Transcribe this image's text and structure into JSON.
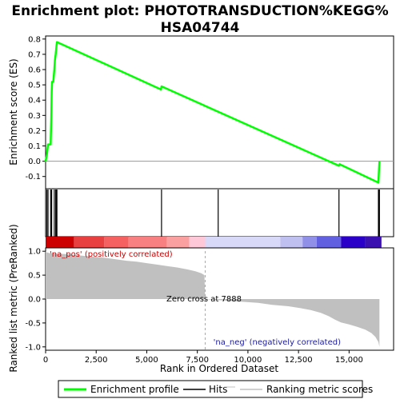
{
  "chart_data": [
    {
      "type": "line",
      "title": "Enrichment plot: PHOTOTRANSDUCTION%KEGG%\nHSA04744",
      "title_lines": [
        "Enrichment plot: PHOTOTRANSDUCTION%KEGG%",
        "HSA04744"
      ],
      "ylabel": "Enrichment score (ES)",
      "ylim": [
        -0.18,
        0.82
      ],
      "xlim": [
        0,
        17200
      ],
      "y_ticks": [
        "-0.1",
        "0.0",
        "0.1",
        "0.2",
        "0.3",
        "0.4",
        "0.5",
        "0.6",
        "0.7",
        "0.8"
      ],
      "y_tick_values": [
        -0.1,
        0.0,
        0.1,
        0.2,
        0.3,
        0.4,
        0.5,
        0.6,
        0.7,
        0.8
      ],
      "grid": false,
      "series": [
        {
          "name": "Enrichment profile",
          "color": "#00ff00",
          "x": [
            0,
            60,
            120,
            250,
            280,
            300,
            320,
            380,
            430,
            460,
            500,
            540,
            560,
            5700,
            5730,
            14500,
            14530,
            16450,
            16480,
            16500
          ],
          "y": [
            0.0,
            0.04,
            0.11,
            0.11,
            0.28,
            0.45,
            0.52,
            0.52,
            0.6,
            0.66,
            0.7,
            0.76,
            0.78,
            0.47,
            0.49,
            -0.03,
            -0.02,
            -0.14,
            -0.05,
            0.0
          ]
        }
      ]
    },
    {
      "type": "hits",
      "hit_positions": [
        60,
        120,
        250,
        300,
        430,
        500,
        540,
        560,
        5730,
        8530,
        14500,
        16450,
        16480,
        16500
      ],
      "hit_color": "#000000",
      "heat_band": [
        {
          "from": 0,
          "to": 1400,
          "color": "#cc0000"
        },
        {
          "from": 1400,
          "to": 2900,
          "color": "#e84040"
        },
        {
          "from": 2900,
          "to": 4100,
          "color": "#f56060"
        },
        {
          "from": 4100,
          "to": 6000,
          "color": "#f98080"
        },
        {
          "from": 6000,
          "to": 7100,
          "color": "#fba0a0"
        },
        {
          "from": 7100,
          "to": 7888,
          "color": "#ffc8d8"
        },
        {
          "from": 7888,
          "to": 11600,
          "color": "#d8d8f8"
        },
        {
          "from": 11600,
          "to": 12700,
          "color": "#c0c0f0"
        },
        {
          "from": 12700,
          "to": 13400,
          "color": "#9090e8"
        },
        {
          "from": 13400,
          "to": 14600,
          "color": "#6060e0"
        },
        {
          "from": 14600,
          "to": 15800,
          "color": "#2a00c8"
        },
        {
          "from": 15800,
          "to": 16600,
          "color": "#3a10b0"
        }
      ]
    },
    {
      "type": "area",
      "xlabel": "Rank in Ordered Dataset",
      "ylabel": "Ranked list metric (PreRanked)",
      "ylim": [
        -1.07,
        1.07
      ],
      "xlim": [
        0,
        17200
      ],
      "y_ticks": [
        "-1.0",
        "-0.5",
        "0.0",
        "0.5",
        "1.0"
      ],
      "y_tick_values": [
        -1.0,
        -0.5,
        0.0,
        0.5,
        1.0
      ],
      "x_ticks": [
        "0",
        "2,500",
        "5,000",
        "7,500",
        "10,000",
        "12,500",
        "15,000"
      ],
      "x_tick_values": [
        0,
        2500,
        5000,
        7500,
        10000,
        12500,
        15000
      ],
      "series": [
        {
          "name": "Ranking metric scores",
          "color": "#c0c0c0",
          "x": [
            0,
            30,
            200,
            600,
            1000,
            1500,
            2000,
            2500,
            3000,
            3500,
            4000,
            4500,
            5000,
            5500,
            6000,
            6500,
            7000,
            7400,
            7700,
            7850,
            7888,
            8500,
            9500,
            10500,
            11200,
            12000,
            12600,
            13100,
            13600,
            14000,
            14300,
            14600,
            15000,
            15400,
            15800,
            16100,
            16300,
            16450,
            16500
          ],
          "y": [
            1.0,
            0.98,
            0.96,
            0.95,
            0.94,
            0.92,
            0.9,
            0.88,
            0.86,
            0.83,
            0.8,
            0.78,
            0.75,
            0.72,
            0.69,
            0.66,
            0.62,
            0.58,
            0.54,
            0.5,
            0.0,
            -0.02,
            -0.05,
            -0.08,
            -0.12,
            -0.15,
            -0.19,
            -0.23,
            -0.29,
            -0.36,
            -0.43,
            -0.49,
            -0.53,
            -0.58,
            -0.64,
            -0.71,
            -0.79,
            -0.9,
            -1.0
          ]
        }
      ],
      "annotations": [
        "'na_pos' (positively correlated)",
        "Zero cross at 7888",
        "'na_neg' (negatively correlated)"
      ],
      "zero_cross": 7888
    }
  ],
  "labels": {
    "title_line1": "Enrichment plot: PHOTOTRANSDUCTION%KEGG%",
    "title_line2": "HSA04744",
    "es_ylabel": "Enrichment score (ES)",
    "metric_ylabel": "Ranked list metric (PreRanked)",
    "xlabel": "Rank in Ordered Dataset",
    "pos_label": "'na_pos' (positively correlated)",
    "neg_label": "'na_neg' (negatively correlated)",
    "zero_cross": "Zero cross at 7888"
  },
  "legend": {
    "items": [
      {
        "label": "Enrichment profile",
        "color": "#00ff00"
      },
      {
        "label": "Hits",
        "color": "#000000"
      },
      {
        "label": "Ranking metric scores",
        "color": "#c0c0c0"
      }
    ]
  }
}
